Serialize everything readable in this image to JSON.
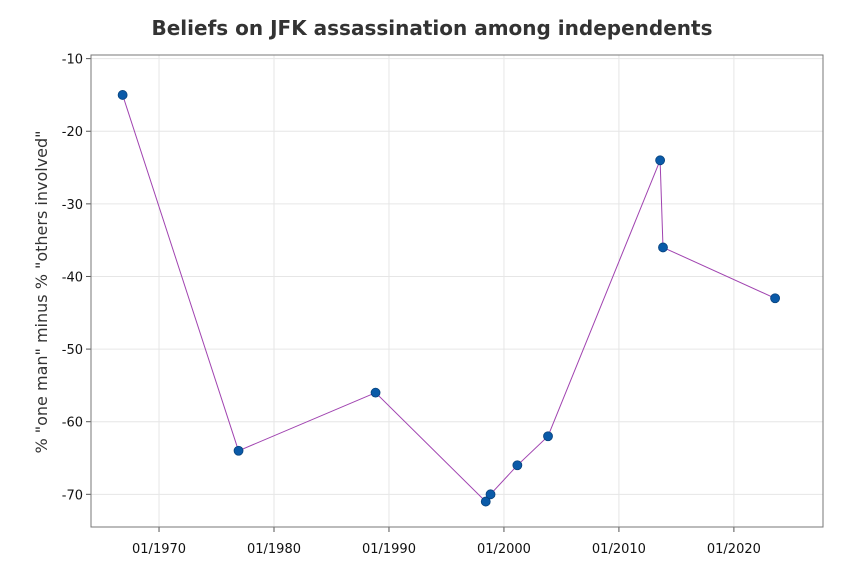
{
  "chart_data": {
    "type": "line",
    "title": "Beliefs on JFK assassination among independents",
    "xlabel": "",
    "ylabel": "% \"one man\" minus % \"others involved\"",
    "x_ticks": [
      "01/1970",
      "01/1980",
      "01/1990",
      "01/2000",
      "01/2010",
      "01/2020"
    ],
    "y_ticks": [
      "-10",
      "-20",
      "-30",
      "-40",
      "-50",
      "-60",
      "-70"
    ],
    "xlim": [
      "1964-02",
      "2027-10"
    ],
    "ylim": [
      -74.5,
      -9.5
    ],
    "grid": true,
    "colors": {
      "line": "#a043b0",
      "marker": "#0a5aa8"
    },
    "series": [
      {
        "x": [
          "1966-11",
          "1976-12",
          "1988-11",
          "1998-06",
          "1998-11",
          "2001-03",
          "2003-11",
          "2013-08",
          "2013-11",
          "2023-08"
        ],
        "y": [
          -15,
          -64,
          -56,
          -71,
          -70,
          -66,
          -62,
          -24,
          -36,
          -43
        ]
      }
    ]
  }
}
